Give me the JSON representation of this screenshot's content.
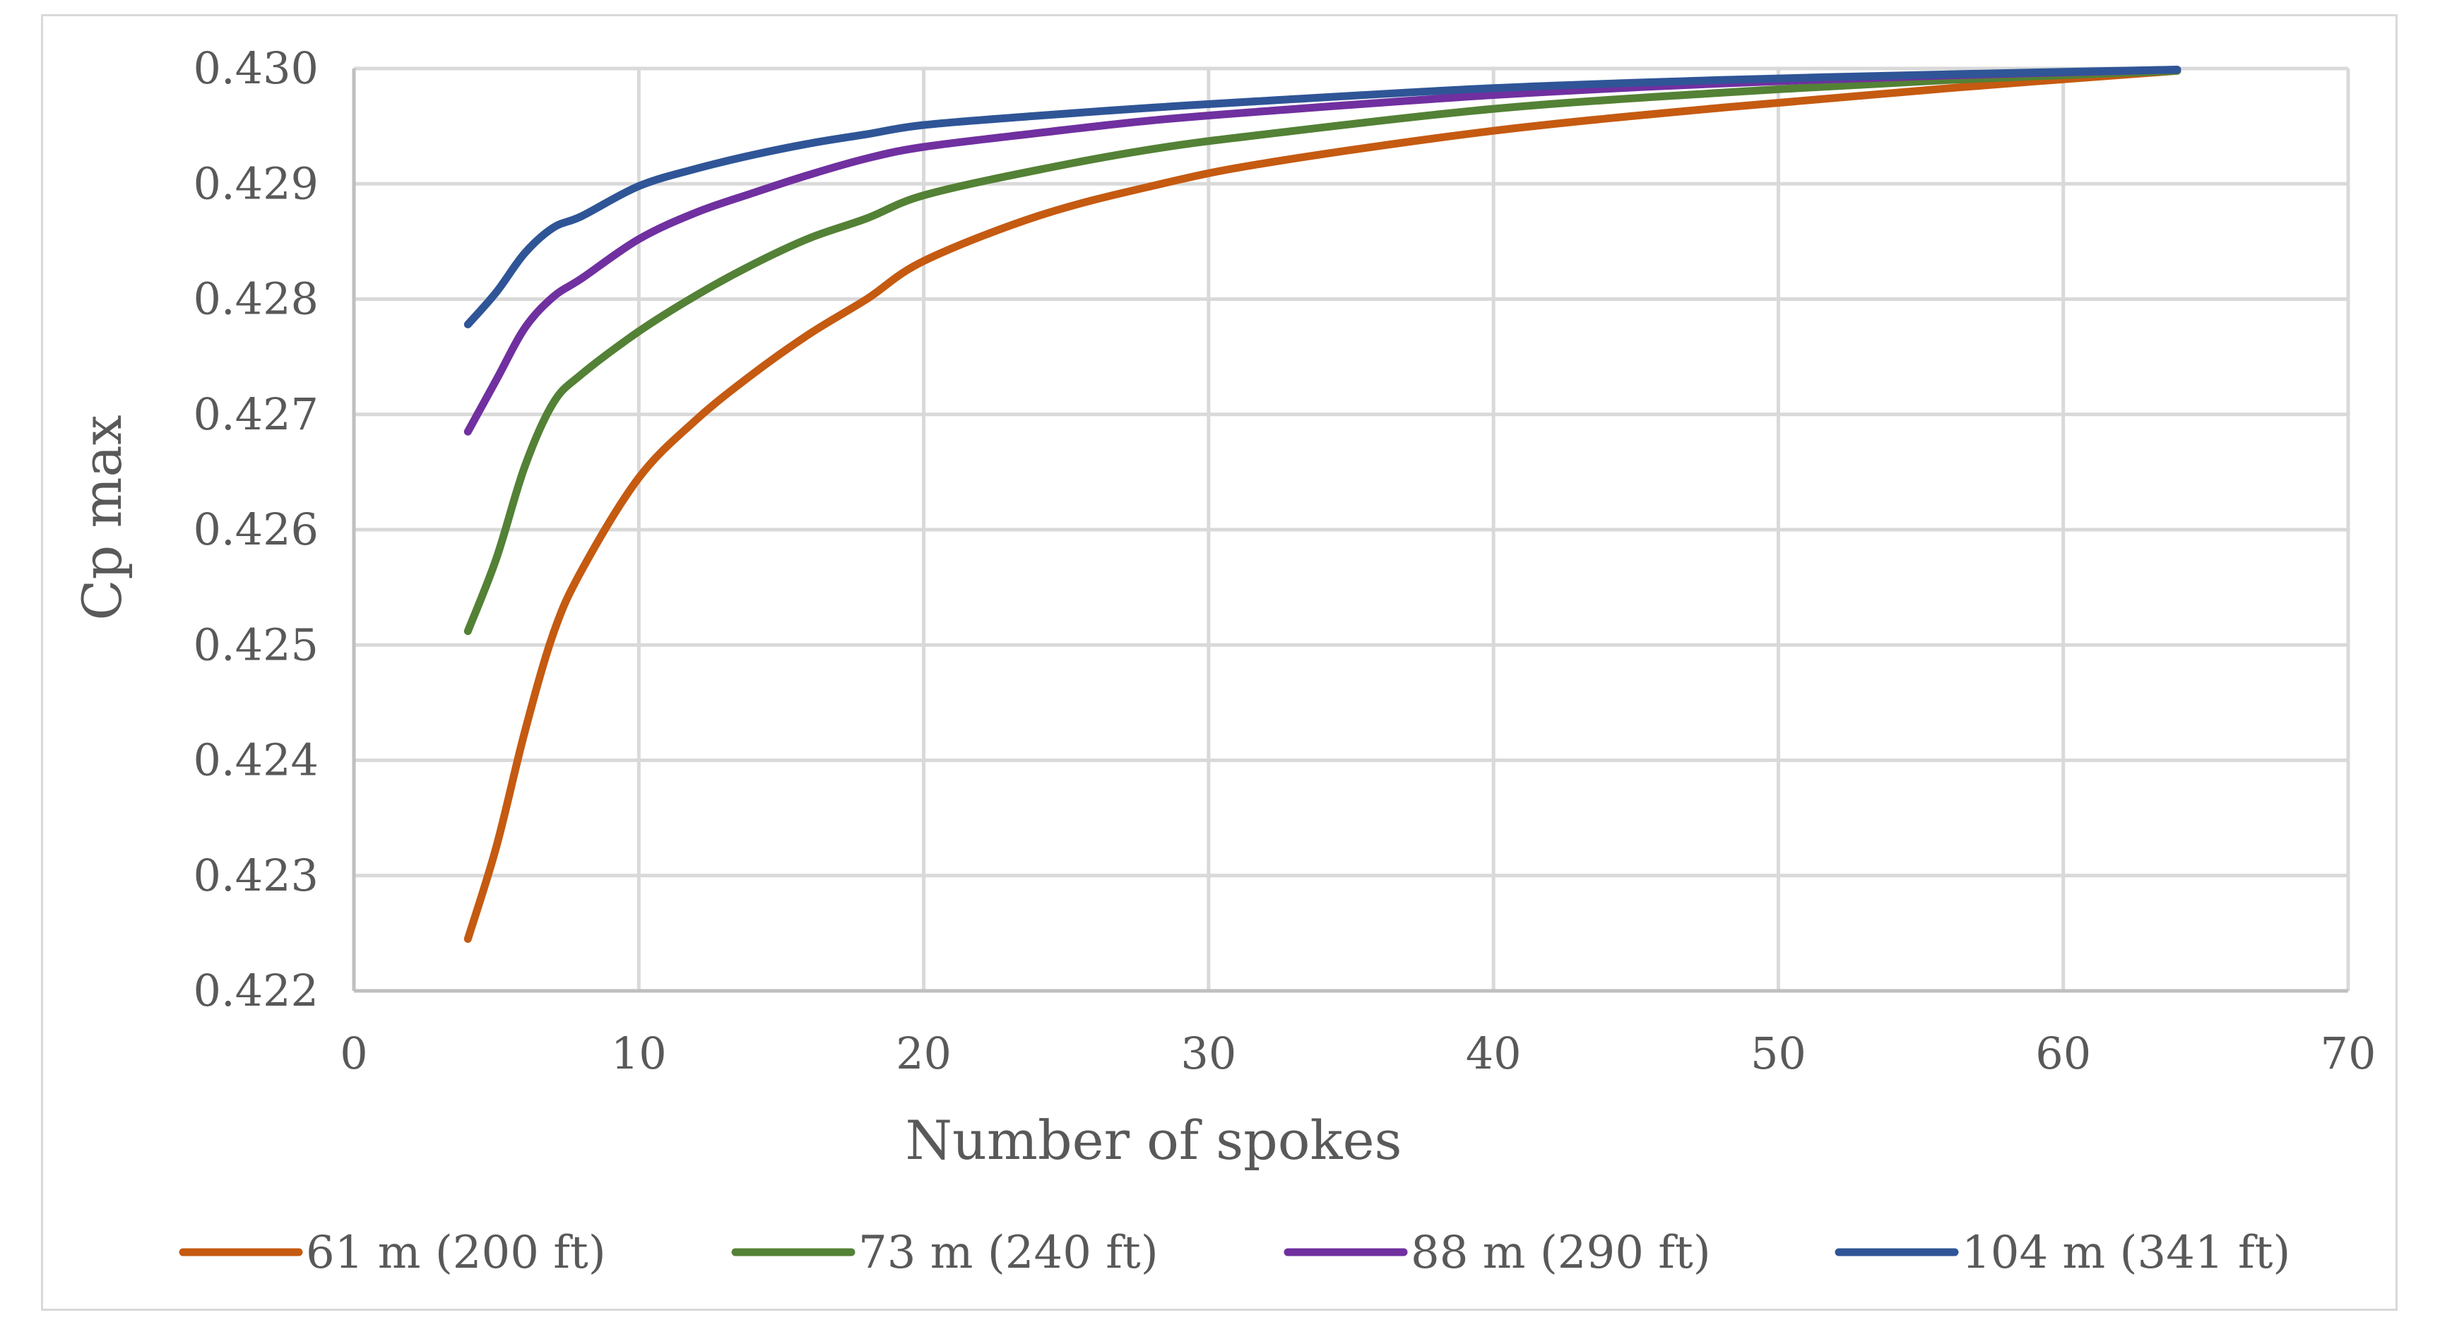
{
  "chart_data": {
    "type": "line",
    "title": "",
    "xlabel": "Number of spokes",
    "ylabel": "Cp max",
    "xlim": [
      0,
      70
    ],
    "ylim": [
      0.422,
      0.43
    ],
    "x_ticks": [
      0,
      10,
      20,
      30,
      40,
      50,
      60,
      70
    ],
    "x_tick_labels": [
      "0",
      "10",
      "20",
      "30",
      "40",
      "50",
      "60",
      "70"
    ],
    "y_ticks": [
      0.422,
      0.423,
      0.424,
      0.425,
      0.426,
      0.427,
      0.428,
      0.429,
      0.43
    ],
    "y_tick_labels": [
      "0.422",
      "0.423",
      "0.424",
      "0.425",
      "0.426",
      "0.427",
      "0.428",
      "0.429",
      "0.430"
    ],
    "grid": true,
    "legend_position": "bottom",
    "series": [
      {
        "name": "61 m (200 ft)",
        "color": "#c55a11",
        "x": [
          4,
          5,
          6,
          7,
          8,
          10,
          12,
          14,
          16,
          18,
          20,
          24,
          28,
          32,
          40,
          48,
          56,
          64
        ],
        "y": [
          0.42245,
          0.42325,
          0.42425,
          0.4251,
          0.42565,
          0.42645,
          0.42695,
          0.42735,
          0.4277,
          0.428,
          0.42833,
          0.42872,
          0.42898,
          0.42918,
          0.42946,
          0.42966,
          0.42983,
          0.42998
        ]
      },
      {
        "name": "73 m (240 ft)",
        "color": "#538135",
        "x": [
          4,
          5,
          6,
          7,
          8,
          10,
          12,
          14,
          16,
          18,
          20,
          24,
          28,
          32,
          40,
          48,
          56,
          64
        ],
        "y": [
          0.42512,
          0.42575,
          0.42655,
          0.4271,
          0.42735,
          0.42772,
          0.42803,
          0.4283,
          0.42853,
          0.4287,
          0.4289,
          0.42912,
          0.4293,
          0.42943,
          0.42965,
          0.42979,
          0.4299,
          0.42998
        ]
      },
      {
        "name": "88 m (290 ft)",
        "color": "#7030a0",
        "x": [
          4,
          5,
          6,
          7,
          8,
          10,
          12,
          14,
          16,
          18,
          20,
          24,
          28,
          32,
          40,
          48,
          56,
          64
        ],
        "y": [
          0.42685,
          0.4273,
          0.42775,
          0.42802,
          0.42818,
          0.42852,
          0.42875,
          0.42892,
          0.42908,
          0.42922,
          0.42932,
          0.42944,
          0.42955,
          0.42963,
          0.42977,
          0.42987,
          0.42994,
          0.42999
        ]
      },
      {
        "name": "104 m (341 ft)",
        "color": "#2f5597",
        "x": [
          4,
          5,
          6,
          7,
          8,
          10,
          12,
          14,
          16,
          18,
          20,
          24,
          28,
          32,
          40,
          48,
          56,
          64
        ],
        "y": [
          0.42778,
          0.42806,
          0.4284,
          0.42862,
          0.42872,
          0.42898,
          0.42913,
          0.42925,
          0.42935,
          0.42943,
          0.42951,
          0.42959,
          0.42966,
          0.42972,
          0.42983,
          0.4299,
          0.42995,
          0.42999
        ]
      }
    ]
  }
}
